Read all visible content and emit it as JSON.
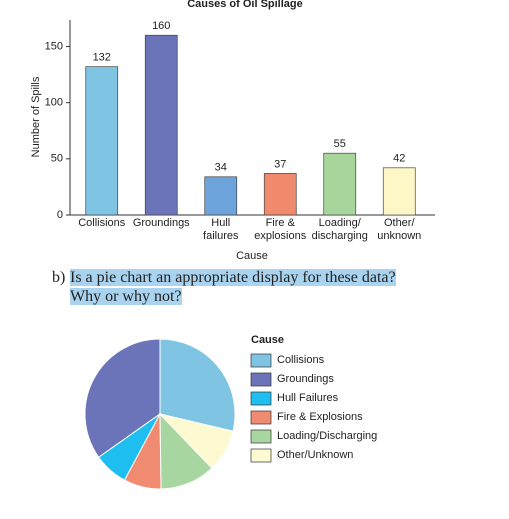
{
  "chart_data": [
    {
      "type": "bar",
      "title": "Causes of Oil Spillage",
      "x_label": "Cause",
      "y_label": "Number of Spills",
      "categories": [
        "Collisions",
        "Groundings",
        "Hull\nfailures",
        "Fire &\nexplosions",
        "Loading/\ndischarging",
        "Other/\nunknown"
      ],
      "values": [
        132,
        160,
        34,
        37,
        55,
        42
      ],
      "colors": [
        "#80c4e4",
        "#6b74b8",
        "#6ea4dc",
        "#ef8a6c",
        "#a7d59b",
        "#fdf7c8"
      ],
      "ylim": [
        0,
        170
      ],
      "yticks": [
        0,
        50,
        100,
        150
      ]
    },
    {
      "type": "pie",
      "legend_title": "Cause",
      "categories": [
        "Collisions",
        "Groundings",
        "Hull Failures",
        "Fire & Explosions",
        "Loading/Discharging",
        "Other/Unknown"
      ],
      "values": [
        132,
        160,
        34,
        37,
        55,
        42
      ],
      "colors": [
        "#80c4e4",
        "#6b74b8",
        "#1ebff0",
        "#f08a70",
        "#a8d6a0",
        "#fdf9d0"
      ]
    }
  ],
  "question": {
    "label": "b)",
    "lines": [
      "Is a pie chart an appropriate display for these data?",
      "Why or why not?"
    ]
  }
}
